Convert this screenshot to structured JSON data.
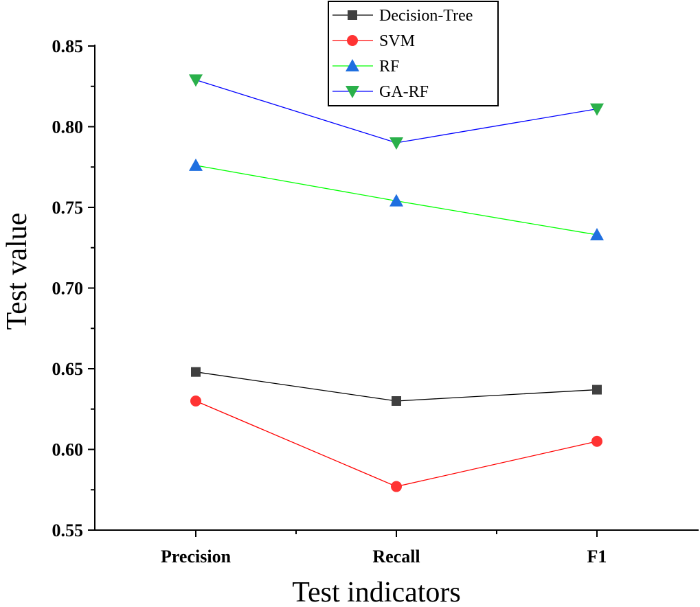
{
  "chart_data": {
    "type": "line",
    "xlabel": "Test indicators",
    "ylabel": "Test value",
    "categories": [
      "Precision",
      "Recall",
      "F1"
    ],
    "ylim": [
      0.55,
      0.85
    ],
    "yticks": [
      "0.55",
      "0.60",
      "0.65",
      "0.70",
      "0.75",
      "0.80",
      "0.85"
    ],
    "legend_position": "top-center",
    "grid": false,
    "series": [
      {
        "name": "Decision-Tree",
        "values": [
          0.648,
          0.63,
          0.637
        ],
        "line_color": "#000000",
        "marker_color": "#404040",
        "marker": "square"
      },
      {
        "name": "SVM",
        "values": [
          0.63,
          0.577,
          0.605
        ],
        "line_color": "#ff0000",
        "marker_color": "#ff3333",
        "marker": "circle"
      },
      {
        "name": "RF",
        "values": [
          0.776,
          0.754,
          0.733
        ],
        "line_color": "#00ff00",
        "marker_color": "#1f6fe0",
        "marker": "triangle-up"
      },
      {
        "name": "GA-RF",
        "values": [
          0.829,
          0.79,
          0.811
        ],
        "line_color": "#0000ff",
        "marker_color": "#2ab04a",
        "marker": "triangle-down"
      }
    ]
  }
}
